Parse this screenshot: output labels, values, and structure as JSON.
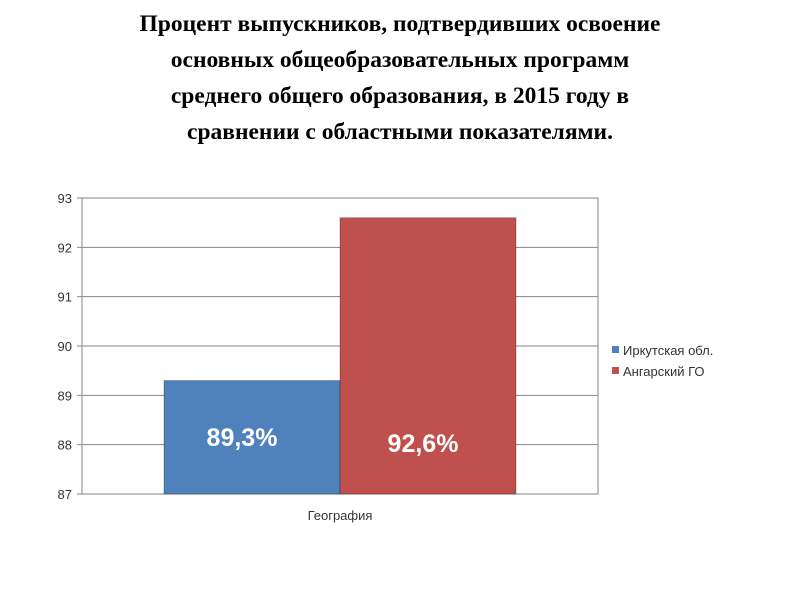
{
  "title_lines": [
    "Процент выпускников, подтвердивших освоение",
    "основных общеобразовательных программ",
    "среднего общего образования, в 2015 году в",
    "сравнении с областными показателями."
  ],
  "colors": {
    "series_1": "#4f81bd",
    "series_2": "#c0504d",
    "grid": "#868686"
  },
  "chart_data": {
    "type": "bar",
    "title": "Процент выпускников, подтвердивших освоение основных общеобразовательных программ среднего общего образования, в 2015 году в сравнении с областными показателями.",
    "categories": [
      "География"
    ],
    "series": [
      {
        "name": "Иркутская обл.",
        "values": [
          89.3
        ],
        "label": "89,3%"
      },
      {
        "name": "Ангарский ГО",
        "values": [
          92.6
        ],
        "label": "92,6%"
      }
    ],
    "ylim": [
      87,
      93
    ],
    "yticks": [
      87,
      88,
      89,
      90,
      91,
      92,
      93
    ],
    "grid": true,
    "legend": "right"
  }
}
